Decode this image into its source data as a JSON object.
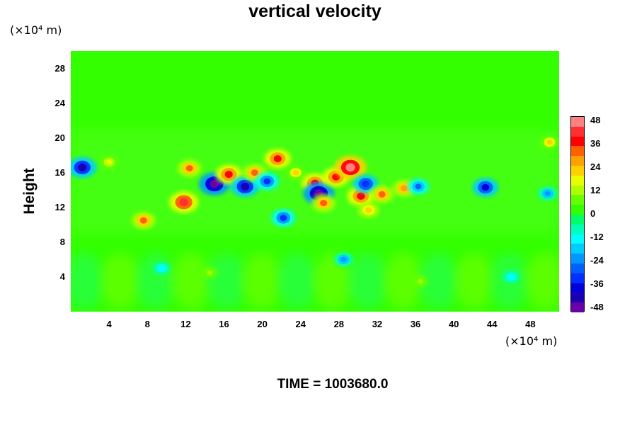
{
  "chart_data": {
    "type": "heatmap",
    "title": "vertical velocity",
    "ylabel": "Height",
    "xlabel": "",
    "x_unit": "(×10⁴ m)",
    "y_unit": "(×10⁴ m)",
    "x_ticks": [
      4,
      8,
      12,
      16,
      20,
      24,
      28,
      32,
      36,
      40,
      44,
      48
    ],
    "y_ticks": [
      4,
      8,
      12,
      16,
      20,
      24,
      28
    ],
    "xlim": [
      0,
      51
    ],
    "ylim": [
      0,
      30
    ],
    "colorbar": {
      "range": [
        -48,
        48
      ],
      "ticks": [
        48,
        36,
        24,
        12,
        0,
        -12,
        -24,
        -36,
        -48
      ],
      "colors": [
        "#ff8080",
        "#ff3030",
        "#ff0000",
        "#ff6000",
        "#ffa000",
        "#ffd000",
        "#e8ff00",
        "#b0ff00",
        "#66ff00",
        "#33ff00",
        "#00ff66",
        "#00ffbb",
        "#00ffff",
        "#00ccff",
        "#0099ff",
        "#0060ff",
        "#0030ff",
        "#0000dd",
        "#1a00b0",
        "#6a00a8"
      ]
    },
    "time_label": "TIME = 1003680.0",
    "features": [
      {
        "x": 1.2,
        "y": 16.6,
        "value": -40
      },
      {
        "x": 4.0,
        "y": 17.2,
        "value": 18
      },
      {
        "x": 12.4,
        "y": 16.5,
        "value": 30
      },
      {
        "x": 11.8,
        "y": 12.6,
        "value": 42
      },
      {
        "x": 15.0,
        "y": 14.7,
        "value": -46
      },
      {
        "x": 16.5,
        "y": 15.8,
        "value": 36
      },
      {
        "x": 18.2,
        "y": 14.4,
        "value": -40
      },
      {
        "x": 19.2,
        "y": 16.0,
        "value": 30
      },
      {
        "x": 20.5,
        "y": 15.0,
        "value": -30
      },
      {
        "x": 21.6,
        "y": 17.6,
        "value": 36
      },
      {
        "x": 23.5,
        "y": 16.0,
        "value": 20
      },
      {
        "x": 25.5,
        "y": 14.8,
        "value": 36
      },
      {
        "x": 25.9,
        "y": 13.6,
        "value": -46
      },
      {
        "x": 26.4,
        "y": 12.5,
        "value": 30
      },
      {
        "x": 27.7,
        "y": 15.5,
        "value": 36
      },
      {
        "x": 29.2,
        "y": 16.6,
        "value": 48
      },
      {
        "x": 30.3,
        "y": 13.3,
        "value": 38
      },
      {
        "x": 30.8,
        "y": 14.7,
        "value": -32
      },
      {
        "x": 32.5,
        "y": 13.5,
        "value": 30
      },
      {
        "x": 34.8,
        "y": 14.2,
        "value": 28
      },
      {
        "x": 36.3,
        "y": 14.4,
        "value": -24
      },
      {
        "x": 43.3,
        "y": 14.3,
        "value": -34
      },
      {
        "x": 49.8,
        "y": 13.6,
        "value": -20
      },
      {
        "x": 50.0,
        "y": 19.5,
        "value": 20
      },
      {
        "x": 7.6,
        "y": 10.5,
        "value": 30
      },
      {
        "x": 22.2,
        "y": 10.8,
        "value": -30
      },
      {
        "x": 31.1,
        "y": 11.7,
        "value": 24
      },
      {
        "x": 28.5,
        "y": 6.0,
        "value": -20
      },
      {
        "x": 14.5,
        "y": 4.5,
        "value": 12
      },
      {
        "x": 36.5,
        "y": 3.5,
        "value": 12
      },
      {
        "x": 9.5,
        "y": 5.0,
        "value": -14
      },
      {
        "x": 46.0,
        "y": 4.0,
        "value": -14
      }
    ]
  }
}
